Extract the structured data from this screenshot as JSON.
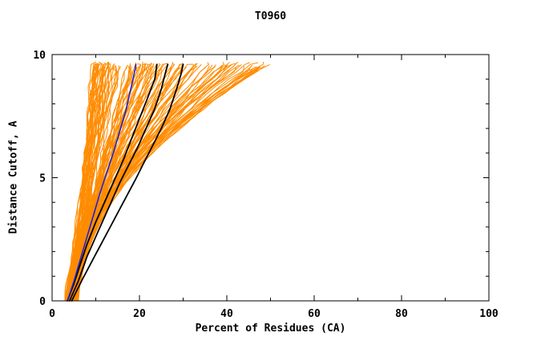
{
  "chart_data": {
    "type": "line",
    "title": "T0960",
    "xlabel": "Percent of Residues (CA)",
    "ylabel": "Distance Cutoff, A",
    "xlim": [
      0,
      100
    ],
    "ylim": [
      0,
      10
    ],
    "xticks": [
      0,
      20,
      40,
      60,
      80,
      100
    ],
    "yticks": [
      0,
      5,
      10
    ],
    "x_minor_step": 10,
    "y_minor_step": 1,
    "grid": false,
    "legend": "none",
    "frame": "box-with-inward-ticks",
    "colors": {
      "ensemble": "#FF8C00",
      "highlight_black": "#000000",
      "highlight_blue": "#2222CC",
      "axis": "#000000",
      "background": "#FFFFFF"
    },
    "ensemble": {
      "description": "Bundle of orange model accuracy curves (percent of CA residues under distance cutoff), estimated from pixels",
      "color": "#FF8C00",
      "count": 130,
      "x_at_y0_range": [
        3,
        6
      ],
      "x_at_ytop_range": [
        10,
        50
      ],
      "y_top": 9.6,
      "seed": 42
    },
    "highlight_series": [
      {
        "name": "black-model-1",
        "color": "#000000",
        "width": 1.8,
        "points": [
          [
            3.5,
            0
          ],
          [
            5,
            0.7
          ],
          [
            6.5,
            1.5
          ],
          [
            8,
            2.3
          ],
          [
            10,
            3.2
          ],
          [
            12,
            4.0
          ],
          [
            14.5,
            5.0
          ],
          [
            16.5,
            5.8
          ],
          [
            18,
            6.5
          ],
          [
            20,
            7.4
          ],
          [
            22,
            8.3
          ],
          [
            23.5,
            9.0
          ],
          [
            24,
            9.6
          ]
        ]
      },
      {
        "name": "black-model-2",
        "color": "#000000",
        "width": 1.8,
        "points": [
          [
            4,
            0
          ],
          [
            6,
            0.8
          ],
          [
            8,
            1.8
          ],
          [
            10.5,
            2.8
          ],
          [
            13,
            3.8
          ],
          [
            15.5,
            4.8
          ],
          [
            17.5,
            5.5
          ],
          [
            19.5,
            6.2
          ],
          [
            21.5,
            7.0
          ],
          [
            23.5,
            7.8
          ],
          [
            25,
            8.6
          ],
          [
            26,
            9.3
          ],
          [
            26.5,
            9.6
          ]
        ]
      },
      {
        "name": "black-model-3",
        "color": "#000000",
        "width": 1.8,
        "points": [
          [
            4.5,
            0
          ],
          [
            7,
            0.9
          ],
          [
            10,
            1.9
          ],
          [
            13,
            2.9
          ],
          [
            16,
            3.9
          ],
          [
            19,
            4.9
          ],
          [
            21,
            5.6
          ],
          [
            23,
            6.3
          ],
          [
            25,
            7.0
          ],
          [
            27,
            7.8
          ],
          [
            28.5,
            8.6
          ],
          [
            29.5,
            9.2
          ],
          [
            30,
            9.6
          ]
        ]
      },
      {
        "name": "blue-model",
        "color": "#2222CC",
        "width": 1.6,
        "points": [
          [
            3.5,
            0
          ],
          [
            5,
            0.8
          ],
          [
            6.5,
            1.7
          ],
          [
            8,
            2.6
          ],
          [
            9.5,
            3.5
          ],
          [
            11,
            4.4
          ],
          [
            12.5,
            5.2
          ],
          [
            14,
            6.0
          ],
          [
            15.5,
            6.9
          ],
          [
            17,
            7.8
          ],
          [
            18,
            8.6
          ],
          [
            19,
            9.4
          ],
          [
            19.2,
            9.6
          ]
        ]
      }
    ]
  }
}
